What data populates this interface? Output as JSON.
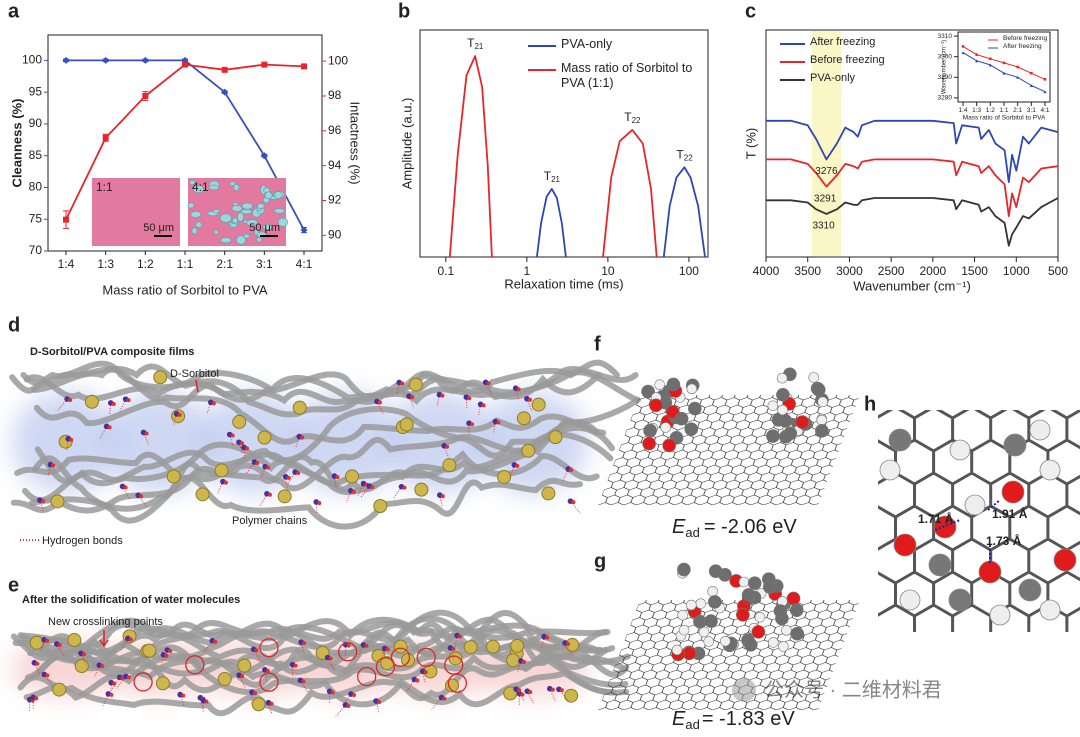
{
  "panel_labels": [
    "a",
    "b",
    "c",
    "d",
    "e",
    "f",
    "g",
    "h"
  ],
  "chart_data": [
    {
      "type": "line",
      "xlabel": "Mass ratio of Sorbitol to PVA",
      "ylabel": "Cleanness (%)",
      "y2label": "Intactness (%)",
      "categories": [
        "1:4",
        "1:3",
        "1:2",
        "1:1",
        "2:1",
        "3:1",
        "4:1"
      ],
      "ylim": [
        70,
        104
      ],
      "yticks": [
        70,
        75,
        80,
        85,
        90,
        95,
        100
      ],
      "y2lim": [
        89.1,
        101.5
      ],
      "y2ticks": [
        90,
        92,
        94,
        96,
        98,
        100
      ],
      "series": [
        {
          "color": "#3a4fb8",
          "marker": "diamond",
          "values": [
            100,
            100,
            100,
            100,
            95,
            85,
            73.3
          ],
          "errors": [
            0.2,
            0.2,
            0.2,
            0.2,
            0.2,
            0.2,
            0.4
          ]
        },
        {
          "color": "#e8252a",
          "marker": "square",
          "axis": "y2",
          "values": [
            90.9,
            95.6,
            98.0,
            99.8,
            99.5,
            99.8,
            99.7
          ],
          "errors": [
            0.5,
            0.2,
            0.25,
            0.1,
            0.1,
            0.1,
            0.1
          ]
        }
      ],
      "insets": [
        {
          "label": "1:1",
          "scale_bar": "50 μm"
        },
        {
          "label": "4:1",
          "scale_bar": "50 μm"
        }
      ]
    },
    {
      "type": "line",
      "xlog": true,
      "xlabel": "Relaxation time (ms)",
      "ylabel": "Amplitude (a.u.)",
      "xlim": [
        0.048,
        172
      ],
      "xticks": [
        0.1,
        1,
        10,
        100
      ],
      "ylim": [
        0,
        200
      ],
      "legend": "upper right",
      "series": [
        {
          "name": "PVA-only",
          "color": "#2e46b5",
          "x": [
            1.33,
            1.5,
            1.75,
            2.03,
            2.35,
            2.7,
            3.03,
            10,
            49,
            58,
            70,
            88,
            105,
            130,
            158
          ],
          "values": [
            0,
            30,
            53,
            60,
            52,
            30,
            0,
            null,
            0,
            45,
            70,
            79,
            70,
            45,
            0
          ]
        },
        {
          "name": "Mass ratio of Sorbitol to PVA (1:1)",
          "color": "#e8252a",
          "x": [
            0.112,
            0.14,
            0.18,
            0.23,
            0.28,
            0.33,
            0.37,
            3,
            8.7,
            11,
            14,
            20,
            27,
            34,
            40
          ],
          "values": [
            0,
            90,
            160,
            177,
            150,
            80,
            0,
            null,
            0,
            70,
            102,
            112,
            100,
            60,
            0
          ]
        }
      ],
      "annotations": [
        {
          "text": "T",
          "sub": "21"
        },
        {
          "text": "T",
          "sub": "21"
        },
        {
          "text": "T",
          "sub": "22"
        },
        {
          "text": "T",
          "sub": "22"
        }
      ]
    },
    {
      "type": "line",
      "xlabel": "Wavenumber (cm⁻¹)",
      "ylabel": "T (%)",
      "xlim": [
        4000,
        500
      ],
      "xticks": [
        4000,
        3500,
        3000,
        2500,
        2000,
        1500,
        1000,
        500
      ],
      "ylim": [
        0,
        100
      ],
      "legend": "upper left",
      "highlight_xrange": [
        3450,
        3100
      ],
      "x": [
        4000,
        3700,
        3500,
        3400,
        3276,
        3150,
        3050,
        2950,
        2900,
        2850,
        2700,
        2000,
        1750,
        1720,
        1650,
        1450,
        1420,
        1330,
        1250,
        1140,
        1090,
        1050,
        1000,
        920,
        850,
        700,
        500
      ],
      "series": [
        {
          "name": "After freezing",
          "color": "#2e46b5",
          "values": [
            60,
            60,
            58,
            52,
            43,
            50,
            57,
            55,
            53,
            58,
            60,
            60,
            59,
            50,
            58,
            57,
            52,
            56,
            50,
            47,
            33,
            45,
            38,
            53,
            50,
            57,
            55
          ]
        },
        {
          "name": "Before freezing",
          "color": "#e8252a",
          "values": [
            43,
            43,
            41,
            37,
            31,
            36,
            41,
            40,
            39,
            42,
            43,
            43,
            42,
            36,
            42,
            40,
            37,
            40,
            36,
            32,
            18,
            28,
            22,
            35,
            33,
            39,
            40
          ]
        },
        {
          "name": "PVA-only",
          "color": "#333333",
          "values": [
            25,
            25,
            24,
            21,
            19,
            21,
            24,
            23,
            23,
            25,
            26,
            26,
            25,
            21,
            25,
            23,
            20,
            22,
            18,
            15,
            5,
            10,
            13,
            18,
            17,
            22,
            26
          ]
        }
      ],
      "annotations": [
        3276,
        3291,
        3310
      ]
    },
    {
      "type": "line",
      "xlabel": "Mass ratio of Sorbitol to PVA",
      "ylabel": "Wavenumber (cm⁻¹)",
      "categories": [
        "1:4",
        "1:3",
        "1:2",
        "1:1",
        "2:1",
        "3:1",
        "4:1"
      ],
      "ylim": [
        3278,
        3312
      ],
      "yticks": [
        3280,
        3290,
        3300,
        3310
      ],
      "legend": "upper right",
      "series": [
        {
          "name": "Before freezing",
          "color": "#e8252a",
          "marker": "square",
          "values": [
            3305,
            3301,
            3299,
            3297,
            3295,
            3292,
            3289
          ]
        },
        {
          "name": "After freezing",
          "color": "#2e46b5",
          "marker": "triangle",
          "values": [
            3302,
            3298,
            3296,
            3292,
            3290,
            3286,
            3283
          ]
        }
      ]
    }
  ],
  "panels": {
    "d": {
      "title": "D-Sorbitol/PVA composite films",
      "sorbitol": "D-Sorbitol",
      "chains": "Polymer chains",
      "hbonds": "Hydrogen bonds"
    },
    "e": {
      "title": "After the solidification of water molecules",
      "crosslink": "New crosslinking points"
    },
    "f": {
      "symbol": "E",
      "sub": "ad",
      "energy": "= -2.06 eV"
    },
    "g": {
      "symbol": "E",
      "sub": "ad",
      "energy": "= -1.83 eV"
    },
    "h": {
      "distances": [
        "1.71 Å",
        "1.91 Å",
        "1.73 Å"
      ]
    }
  },
  "watermark": "公众号 · 二维材料君"
}
